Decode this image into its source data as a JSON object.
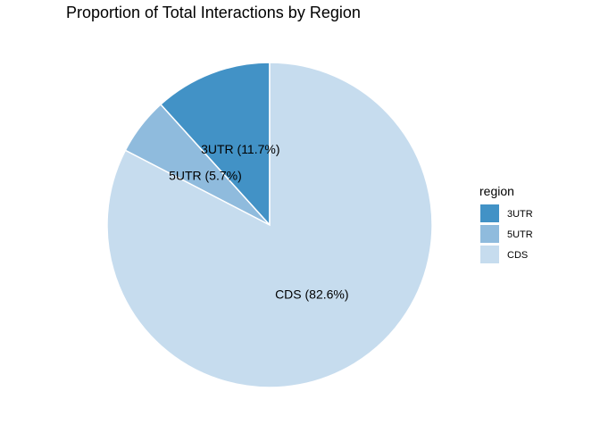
{
  "chart_data": {
    "type": "pie",
    "title": "Proportion of Total Interactions by Region",
    "legend_title": "region",
    "legend_position": "right",
    "start": "top",
    "direction": "counterclockwise",
    "slices": [
      {
        "category": "3UTR",
        "percent": 11.7,
        "label": "3UTR (11.7%)",
        "color": "#4292C6"
      },
      {
        "category": "5UTR",
        "percent": 5.7,
        "label": "5UTR (5.7%)",
        "color": "#8FBBDD"
      },
      {
        "category": "CDS",
        "percent": 82.6,
        "label": "CDS (82.6%)",
        "color": "#C6DCEE"
      }
    ]
  }
}
